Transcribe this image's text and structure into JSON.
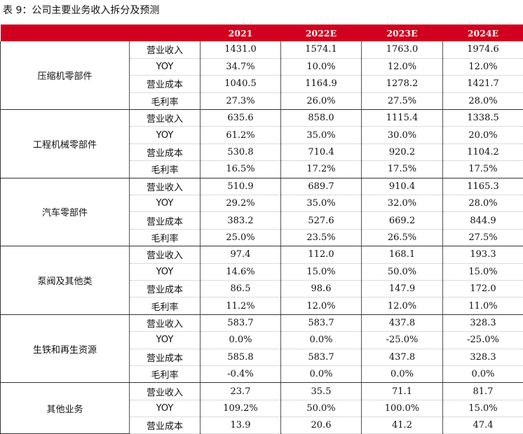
{
  "caption": {
    "label": "表 9：",
    "text": "公司主要业务收入拆分及预测"
  },
  "colors": {
    "header_bg": "#d2001f",
    "header_text": "#ffffff"
  },
  "header": {
    "blank": "",
    "metric_blank": "",
    "years": [
      "2021",
      "2022E",
      "2023E",
      "2024E"
    ]
  },
  "segments": [
    {
      "name": "压缩机零部件",
      "rows": [
        {
          "metric": "营业收入",
          "values": [
            "1431.0",
            "1574.1",
            "1763.0",
            "1974.6"
          ]
        },
        {
          "metric": "YOY",
          "values": [
            "34.7%",
            "10.0%",
            "12.0%",
            "12.0%"
          ]
        },
        {
          "metric": "营业成本",
          "values": [
            "1040.5",
            "1164.9",
            "1278.2",
            "1421.7"
          ]
        },
        {
          "metric": "毛利率",
          "values": [
            "27.3%",
            "26.0%",
            "27.5%",
            "28.0%"
          ]
        }
      ]
    },
    {
      "name": "工程机械零部件",
      "rows": [
        {
          "metric": "营业收入",
          "values": [
            "635.6",
            "858.0",
            "1115.4",
            "1338.5"
          ]
        },
        {
          "metric": "YOY",
          "values": [
            "61.2%",
            "35.0%",
            "30.0%",
            "20.0%"
          ]
        },
        {
          "metric": "营业成本",
          "values": [
            "530.8",
            "710.4",
            "920.2",
            "1104.2"
          ]
        },
        {
          "metric": "毛利率",
          "values": [
            "16.5%",
            "17.2%",
            "17.5%",
            "17.5%"
          ]
        }
      ]
    },
    {
      "name": "汽车零部件",
      "rows": [
        {
          "metric": "营业收入",
          "values": [
            "510.9",
            "689.7",
            "910.4",
            "1165.3"
          ]
        },
        {
          "metric": "YOY",
          "values": [
            "29.2%",
            "35.0%",
            "32.0%",
            "28.0%"
          ]
        },
        {
          "metric": "营业成本",
          "values": [
            "383.2",
            "527.6",
            "669.2",
            "844.9"
          ]
        },
        {
          "metric": "毛利率",
          "values": [
            "25.0%",
            "23.5%",
            "26.5%",
            "27.5%"
          ]
        }
      ]
    },
    {
      "name": "泵阀及其他类",
      "rows": [
        {
          "metric": "营业收入",
          "values": [
            "97.4",
            "112.0",
            "168.1",
            "193.3"
          ]
        },
        {
          "metric": "YOY",
          "values": [
            "14.6%",
            "15.0%",
            "50.0%",
            "15.0%"
          ]
        },
        {
          "metric": "营业成本",
          "values": [
            "86.5",
            "98.6",
            "147.9",
            "172.0"
          ]
        },
        {
          "metric": "毛利率",
          "values": [
            "11.2%",
            "12.0%",
            "12.0%",
            "11.0%"
          ]
        }
      ]
    },
    {
      "name": "生铁和再生资源",
      "rows": [
        {
          "metric": "营业收入",
          "values": [
            "583.7",
            "583.7",
            "437.8",
            "328.3"
          ]
        },
        {
          "metric": "YOY",
          "values": [
            "0.0%",
            "0.0%",
            "-25.0%",
            "-25.0%"
          ]
        },
        {
          "metric": "营业成本",
          "values": [
            "585.8",
            "583.7",
            "437.8",
            "328.3"
          ]
        },
        {
          "metric": "毛利率",
          "values": [
            "-0.4%",
            "0.0%",
            "0.0%",
            "0.0%"
          ]
        }
      ]
    },
    {
      "name": "其他业务",
      "rows": [
        {
          "metric": "营业收入",
          "values": [
            "23.7",
            "35.5",
            "71.1",
            "81.7"
          ]
        },
        {
          "metric": "YOY",
          "values": [
            "109.2%",
            "50.0%",
            "100.0%",
            "15.0%"
          ]
        },
        {
          "metric": "营业成本",
          "values": [
            "13.9",
            "20.6",
            "41.2",
            "47.4"
          ]
        }
      ]
    }
  ]
}
